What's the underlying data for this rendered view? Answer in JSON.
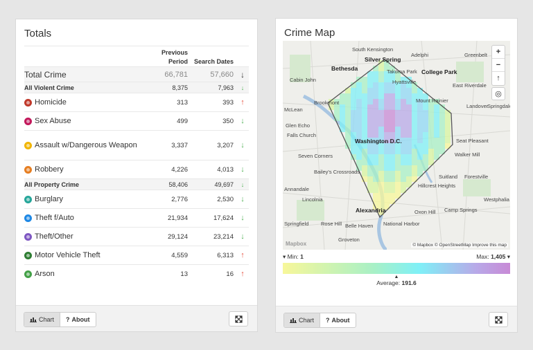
{
  "totals": {
    "title": "Totals",
    "columns": {
      "prev": "Previous Period",
      "search": "Search Dates"
    },
    "rows": [
      {
        "kind": "total",
        "label": "Total Crime",
        "prev": "66,781",
        "search": "57,660",
        "trend": "down"
      },
      {
        "kind": "cat",
        "label": "All Violent Crime",
        "prev": "8,375",
        "search": "7,963",
        "trend": "down"
      },
      {
        "kind": "item",
        "label": "Homicide",
        "icon": "homicide-icon",
        "color": "#c0392b",
        "prev": "313",
        "search": "393",
        "trend": "up"
      },
      {
        "kind": "item",
        "label": "Sex Abuse",
        "icon": "sex-abuse-icon",
        "color": "#c2185b",
        "prev": "499",
        "search": "350",
        "trend": "down"
      },
      {
        "kind": "item",
        "label": "Assault w/Dangerous Weapon",
        "icon": "assault-icon",
        "color": "#f1b500",
        "prev": "3,337",
        "search": "3,207",
        "trend": "down",
        "tall": true
      },
      {
        "kind": "item",
        "label": "Robbery",
        "icon": "robbery-icon",
        "color": "#e67e22",
        "prev": "4,226",
        "search": "4,013",
        "trend": "down"
      },
      {
        "kind": "cat",
        "label": "All Property Crime",
        "prev": "58,406",
        "search": "49,697",
        "trend": "down"
      },
      {
        "kind": "item",
        "label": "Burglary",
        "icon": "burglary-icon",
        "color": "#26a69a",
        "prev": "2,776",
        "search": "2,530",
        "trend": "down"
      },
      {
        "kind": "item",
        "label": "Theft f/Auto",
        "icon": "theft-auto-icon",
        "color": "#1e88e5",
        "prev": "21,934",
        "search": "17,624",
        "trend": "down"
      },
      {
        "kind": "item",
        "label": "Theft/Other",
        "icon": "theft-other-icon",
        "color": "#7e57c2",
        "prev": "29,124",
        "search": "23,214",
        "trend": "down"
      },
      {
        "kind": "item",
        "label": "Motor Vehicle Theft",
        "icon": "motor-vehicle-icon",
        "color": "#2e7d32",
        "prev": "4,559",
        "search": "6,313",
        "trend": "up"
      },
      {
        "kind": "item",
        "label": "Arson",
        "icon": "arson-icon",
        "color": "#43a047",
        "prev": "13",
        "search": "16",
        "trend": "up"
      }
    ],
    "footer": {
      "chart_label": "Chart",
      "about_label": "About"
    }
  },
  "crime_map": {
    "title": "Crime Map",
    "labels": [
      "South Kensington",
      "Silver Spring",
      "Adelphi",
      "Greenbelt",
      "Bethesda",
      "Takoma Park",
      "College Park",
      "Cabin John",
      "Hyattsville",
      "East Riverdale",
      "Brookmont",
      "Mount Rainier",
      "Landover",
      "Springdale",
      "McLean",
      "Washington D.C.",
      "Seat Pleasant",
      "Walker Mill",
      "Seven Corners",
      "Bailey's Crossroads",
      "Suitland",
      "Forestville",
      "Hillcrest Heights",
      "Lincolnia",
      "Westphalia",
      "Camp Springs",
      "Alexandria",
      "Oxon Hill",
      "Rose Hill",
      "Belle Haven",
      "National Harbor",
      "Groveton",
      "Springfield",
      "Annandale",
      "Glen Echo",
      "Falls Church"
    ],
    "attribution": "© Mapbox © OpenStreetMap Improve this map",
    "logo": "Mapbox",
    "zoom_in": "+",
    "zoom_out": "−",
    "compass": "↑",
    "legend": {
      "min_label": "Min:",
      "min": "1",
      "max_label": "Max:",
      "max": "1,405",
      "avg_label": "Average:",
      "avg": "191.6"
    },
    "footer": {
      "chart_label": "Chart",
      "about_label": "About"
    }
  }
}
